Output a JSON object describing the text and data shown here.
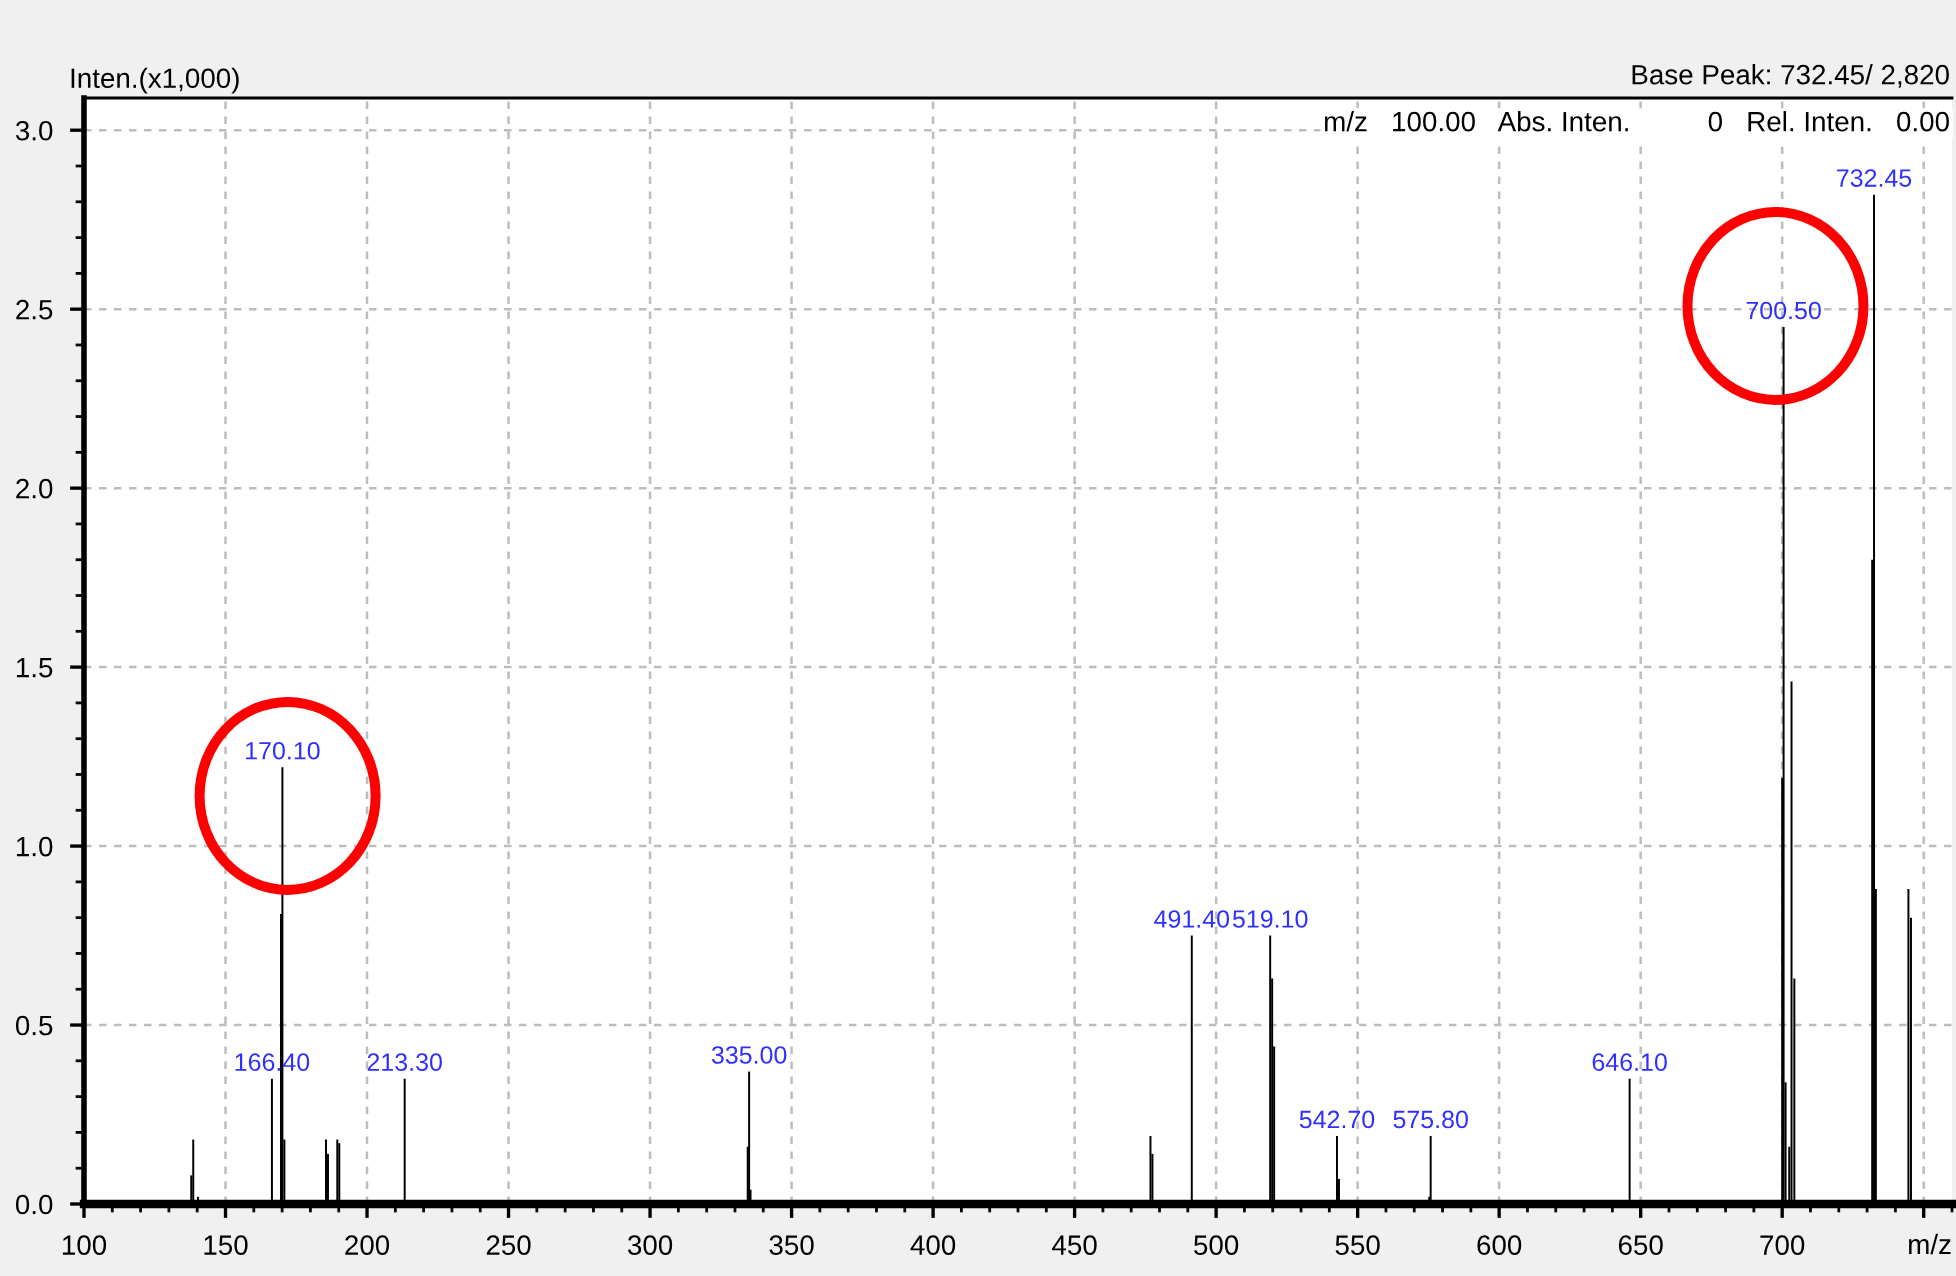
{
  "chart_data": {
    "type": "bar",
    "ylabel": "Inten.(x1,000)",
    "xlabel": "m/z",
    "annotations": [
      "Base Peak: 732.45/ 2,820",
      "m/z   100.00   Abs. Inten.          0   Rel. Inten.   0.00",
      {
        "text": "166.40",
        "x": 166.4,
        "y": 0.35
      },
      {
        "text": "170.10",
        "x": 170.1,
        "y": 1.22
      },
      {
        "text": "213.30",
        "x": 213.3,
        "y": 0.35
      },
      {
        "text": "335.00",
        "x": 335.0,
        "y": 0.37
      },
      {
        "text": "491.40",
        "x": 491.4,
        "y": 0.75
      },
      {
        "text": "519.10",
        "x": 519.1,
        "y": 0.75
      },
      {
        "text": "542.70",
        "x": 542.7,
        "y": 0.19
      },
      {
        "text": "575.80",
        "x": 575.8,
        "y": 0.19
      },
      {
        "text": "646.10",
        "x": 646.1,
        "y": 0.35
      },
      {
        "text": "700.50",
        "x": 700.5,
        "y": 2.45
      },
      {
        "text": "732.45",
        "x": 732.45,
        "y": 2.82
      }
    ],
    "xlim": [
      100,
      760
    ],
    "xticks": [
      100,
      150,
      200,
      250,
      300,
      350,
      400,
      450,
      500,
      550,
      600,
      650,
      700,
      {
        "value": 750,
        "label": null
      }
    ],
    "ylim": [
      0,
      3.09
    ],
    "yticks": [
      {
        "value": 0,
        "label": "0.0"
      },
      {
        "value": 0.5,
        "label": "0.5"
      },
      {
        "value": 1,
        "label": "1.0"
      },
      {
        "value": 1.5,
        "label": "1.5"
      },
      {
        "value": 2,
        "label": "2.0"
      },
      {
        "value": 2.5,
        "label": "2.5"
      },
      {
        "value": 3,
        "label": "3.0"
      }
    ],
    "grid": true,
    "series": [
      {
        "color": "#000000",
        "x": [
          137.9,
          138.6,
          140.3,
          166.4,
          169.6,
          170.1,
          170.8,
          185.5,
          186.2,
          189.5,
          190.2,
          213.3,
          334.5,
          335.0,
          335.5,
          476.8,
          477.5,
          491.4,
          519.1,
          519.8,
          520.5,
          542.7,
          543.4,
          575.3,
          575.8,
          646.1,
          700.0,
          700.5,
          701.2,
          702.5,
          703.3,
          704.3,
          731.8,
          732.45,
          733.1,
          744.6,
          745.5
        ],
        "values": [
          0.08,
          0.18,
          0.02,
          0.35,
          0.81,
          1.22,
          0.18,
          0.18,
          0.14,
          0.18,
          0.17,
          0.35,
          0.16,
          0.37,
          0.04,
          0.19,
          0.14,
          0.75,
          0.75,
          0.63,
          0.44,
          0.19,
          0.07,
          0.02,
          0.19,
          0.35,
          1.19,
          2.45,
          0.34,
          0.16,
          1.46,
          0.63,
          1.8,
          2.82,
          0.88,
          0.88,
          0.8
        ]
      }
    ]
  }
}
